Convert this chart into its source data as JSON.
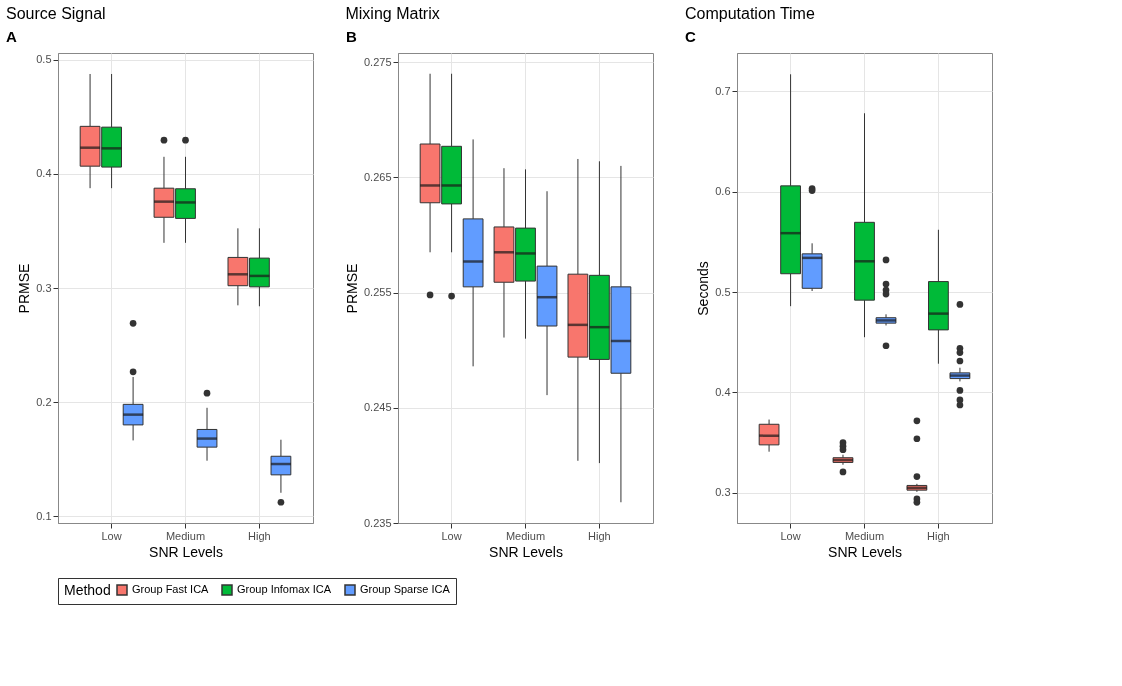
{
  "chart_data": [
    {
      "type": "box",
      "title": "Source Signal",
      "annotations": [
        "A"
      ],
      "xlabel": "SNR Levels",
      "ylabel": "PRMSE",
      "categories": [
        "Low",
        "Medium",
        "High"
      ],
      "ylim": [
        0.094,
        0.506
      ],
      "yticks": [
        0.1,
        0.2,
        0.3,
        0.4,
        0.5
      ],
      "grid": true,
      "legend": "bottom",
      "legend_title": "Method",
      "series": [
        {
          "name": "Group Fast ICA",
          "color": "#f8766d",
          "boxes": [
            {
              "low": 0.3875,
              "q1": 0.4068,
              "median": 0.423,
              "q3": 0.4417,
              "high": 0.4876
            },
            {
              "low": 0.3396,
              "q1": 0.362,
              "median": 0.3757,
              "q3": 0.3875,
              "high": 0.415,
              "outliers": [
                0.4296
              ]
            },
            {
              "low": 0.2848,
              "q1": 0.302,
              "median": 0.312,
              "q3": 0.3268,
              "high": 0.3523
            }
          ]
        },
        {
          "name": "Group Infomax ICA",
          "color": "#00ba38",
          "boxes": [
            {
              "low": 0.3875,
              "q1": 0.406,
              "median": 0.4224,
              "q3": 0.441,
              "high": 0.4876
            },
            {
              "low": 0.3396,
              "q1": 0.361,
              "median": 0.375,
              "q3": 0.387,
              "high": 0.415,
              "outliers": [
                0.4296
              ]
            },
            {
              "low": 0.284,
              "q1": 0.301,
              "median": 0.3106,
              "q3": 0.3262,
              "high": 0.3523
            }
          ]
        },
        {
          "name": "Group Sparse ICA",
          "color": "#619cff",
          "boxes": [
            {
              "low": 0.1664,
              "q1": 0.18,
              "median": 0.189,
              "q3": 0.198,
              "high": 0.222,
              "outliers": [
                0.269,
                0.2265
              ]
            },
            {
              "low": 0.1486,
              "q1": 0.1605,
              "median": 0.168,
              "q3": 0.176,
              "high": 0.195,
              "outliers": [
                0.2078
              ]
            },
            {
              "low": 0.1205,
              "q1": 0.1362,
              "median": 0.1457,
              "q3": 0.1525,
              "high": 0.167,
              "outliers": [
                0.1122
              ]
            }
          ]
        }
      ]
    },
    {
      "type": "box",
      "title": "Mixing Matrix",
      "annotations": [
        "B"
      ],
      "xlabel": "SNR Levels",
      "ylabel": "PRMSE",
      "categories": [
        "Low",
        "Medium",
        "High"
      ],
      "ylim": [
        0.235,
        0.2758
      ],
      "yticks": [
        0.235,
        0.245,
        0.255,
        0.265,
        0.275
      ],
      "grid": true,
      "series": [
        {
          "name": "Group Fast ICA",
          "color": "#f8766d",
          "boxes": [
            {
              "low": 0.2585,
              "q1": 0.2628,
              "median": 0.2643,
              "q3": 0.2679,
              "high": 0.274,
              "outliers": [
                0.2548
              ]
            },
            {
              "low": 0.2511,
              "q1": 0.2559,
              "median": 0.2585,
              "q3": 0.2607,
              "high": 0.2658
            },
            {
              "low": 0.2404,
              "q1": 0.2494,
              "median": 0.2522,
              "q3": 0.2566,
              "high": 0.2666
            }
          ]
        },
        {
          "name": "Group Infomax ICA",
          "color": "#00ba38",
          "boxes": [
            {
              "low": 0.2585,
              "q1": 0.2627,
              "median": 0.2643,
              "q3": 0.2677,
              "high": 0.274,
              "outliers": [
                0.2547
              ]
            },
            {
              "low": 0.251,
              "q1": 0.256,
              "median": 0.2584,
              "q3": 0.2606,
              "high": 0.2657
            },
            {
              "low": 0.2402,
              "q1": 0.2492,
              "median": 0.252,
              "q3": 0.2565,
              "high": 0.2664
            }
          ]
        },
        {
          "name": "Group Sparse ICA",
          "color": "#619cff",
          "boxes": [
            {
              "low": 0.2486,
              "q1": 0.2555,
              "median": 0.2577,
              "q3": 0.2614,
              "high": 0.2683
            },
            {
              "low": 0.2461,
              "q1": 0.2521,
              "median": 0.2546,
              "q3": 0.2573,
              "high": 0.2638
            },
            {
              "low": 0.2368,
              "q1": 0.248,
              "median": 0.2508,
              "q3": 0.2555,
              "high": 0.266
            }
          ]
        }
      ]
    },
    {
      "type": "box",
      "title": "Computation Time",
      "annotations": [
        "C"
      ],
      "xlabel": "SNR Levels",
      "ylabel": "Seconds",
      "categories": [
        "Low",
        "Medium",
        "High"
      ],
      "ylim": [
        0.27,
        0.738
      ],
      "yticks": [
        0.3,
        0.4,
        0.5,
        0.6,
        0.7
      ],
      "grid": true,
      "series": [
        {
          "name": "Group Fast ICA",
          "color": "#f8766d",
          "boxes": [
            {
              "low": 0.341,
              "q1": 0.3478,
              "median": 0.357,
              "q3": 0.3683,
              "high": 0.373
            },
            {
              "low": 0.328,
              "q1": 0.3303,
              "median": 0.3327,
              "q3": 0.335,
              "high": 0.338,
              "outliers": [
                0.35,
                0.3465,
                0.343,
                0.3209
              ]
            },
            {
              "low": 0.301,
              "q1": 0.3027,
              "median": 0.305,
              "q3": 0.3074,
              "high": 0.309,
              "outliers": [
                0.3717,
                0.3539,
                0.3162,
                0.294,
                0.2906
              ]
            }
          ]
        },
        {
          "name": "Group Infomax ICA",
          "color": "#00ba38",
          "boxes": [
            {
              "low": 0.4859,
              "q1": 0.5182,
              "median": 0.5586,
              "q3": 0.6057,
              "high": 0.7168
            },
            {
              "low": 0.455,
              "q1": 0.4919,
              "median": 0.5306,
              "q3": 0.5694,
              "high": 0.678
            },
            {
              "low": 0.4286,
              "q1": 0.4623,
              "median": 0.4785,
              "q3": 0.5104,
              "high": 0.562
            }
          ]
        },
        {
          "name": "Group Sparse ICA",
          "color": "#619cff",
          "boxes": [
            {
              "low": 0.501,
              "q1": 0.5037,
              "median": 0.534,
              "q3": 0.538,
              "high": 0.5485,
              "outliers": [
                0.603,
                0.601
              ]
            },
            {
              "low": 0.4667,
              "q1": 0.469,
              "median": 0.4717,
              "q3": 0.4744,
              "high": 0.4778,
              "outliers": [
                0.532,
                0.508,
                0.502,
                0.498,
                0.4465
              ]
            },
            {
              "low": 0.411,
              "q1": 0.4138,
              "median": 0.4168,
              "q3": 0.4195,
              "high": 0.4246,
              "outliers": [
                0.4876,
                0.444,
                0.4397,
                0.4313,
                0.402,
                0.3926,
                0.3875
              ]
            }
          ]
        }
      ]
    }
  ]
}
